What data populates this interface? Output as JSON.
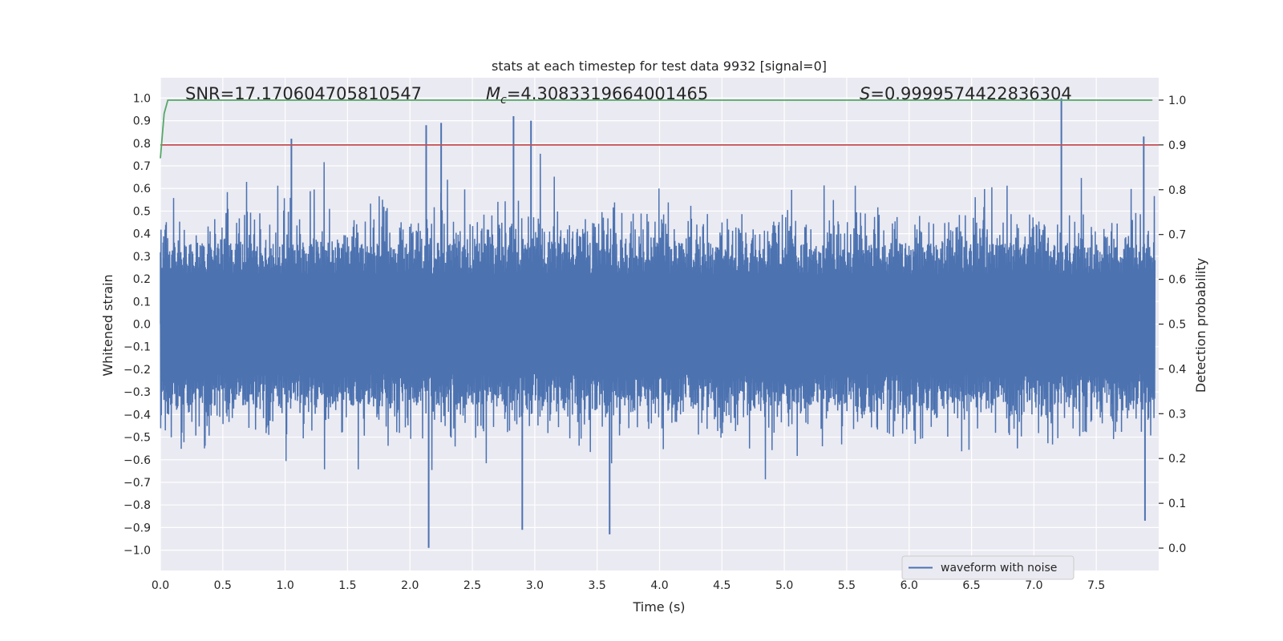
{
  "chart_data": {
    "type": "line",
    "title": "stats at each timestep for test data 9932 [signal=0]",
    "xlabel": "Time (s)",
    "ylabel": "Whitened strain",
    "y2label": "Detection probability",
    "xlim": [
      0,
      8
    ],
    "ylim": [
      -1.09,
      1.09
    ],
    "y2lim": [
      -0.05,
      1.05
    ],
    "x_ticks": [
      "0.0",
      "0.5",
      "1.0",
      "1.5",
      "2.0",
      "2.5",
      "3.0",
      "3.5",
      "4.0",
      "4.5",
      "5.0",
      "5.5",
      "6.0",
      "6.5",
      "7.0",
      "7.5"
    ],
    "y_ticks": [
      "1.0",
      "0.9",
      "0.8",
      "0.7",
      "0.6",
      "0.5",
      "0.4",
      "0.3",
      "0.2",
      "0.1",
      "0.0",
      "−0.1",
      "−0.2",
      "−0.3",
      "−0.4",
      "−0.5",
      "−0.6",
      "−0.7",
      "−0.8",
      "−0.9",
      "−1.0"
    ],
    "y2_ticks": [
      "1.0",
      "0.9",
      "0.8",
      "0.7",
      "0.6",
      "0.5",
      "0.4",
      "0.3",
      "0.2",
      "0.1",
      "0.0"
    ],
    "stats": {
      "snr_label": "SNR=17.170604705810547",
      "mc_symbol": "M",
      "mc_subscript": "c",
      "mc_value": "=4.3083319664001465",
      "s_symbol": "S",
      "s_value": "=0.9999574422836304"
    },
    "threshold": {
      "name": "detection threshold",
      "y2": 0.9,
      "color": "#c44e52"
    },
    "series": [
      {
        "name": "waveform with noise",
        "color": "#4c72b0",
        "envelope_typical": 0.45,
        "peaks": [
          {
            "x": 1.05,
            "y": 0.82
          },
          {
            "x": 2.13,
            "y": 0.88
          },
          {
            "x": 2.25,
            "y": 0.89
          },
          {
            "x": 2.83,
            "y": 0.92
          },
          {
            "x": 2.97,
            "y": 0.9
          },
          {
            "x": 7.22,
            "y": 1.0
          },
          {
            "x": 7.88,
            "y": 0.83
          },
          {
            "x": 2.15,
            "y": -0.99
          },
          {
            "x": 3.6,
            "y": -0.93
          },
          {
            "x": 2.9,
            "y": -0.91
          },
          {
            "x": 7.89,
            "y": -0.87
          }
        ]
      },
      {
        "name": "detection probability",
        "color": "#55a868",
        "axis": "y2",
        "x": [
          0.0,
          0.03,
          0.06,
          0.1,
          7.95
        ],
        "values": [
          0.87,
          0.97,
          1.0,
          1.0,
          1.0
        ]
      }
    ],
    "legend": {
      "label": "waveform with noise",
      "location": "lower-right"
    },
    "grid": true
  }
}
